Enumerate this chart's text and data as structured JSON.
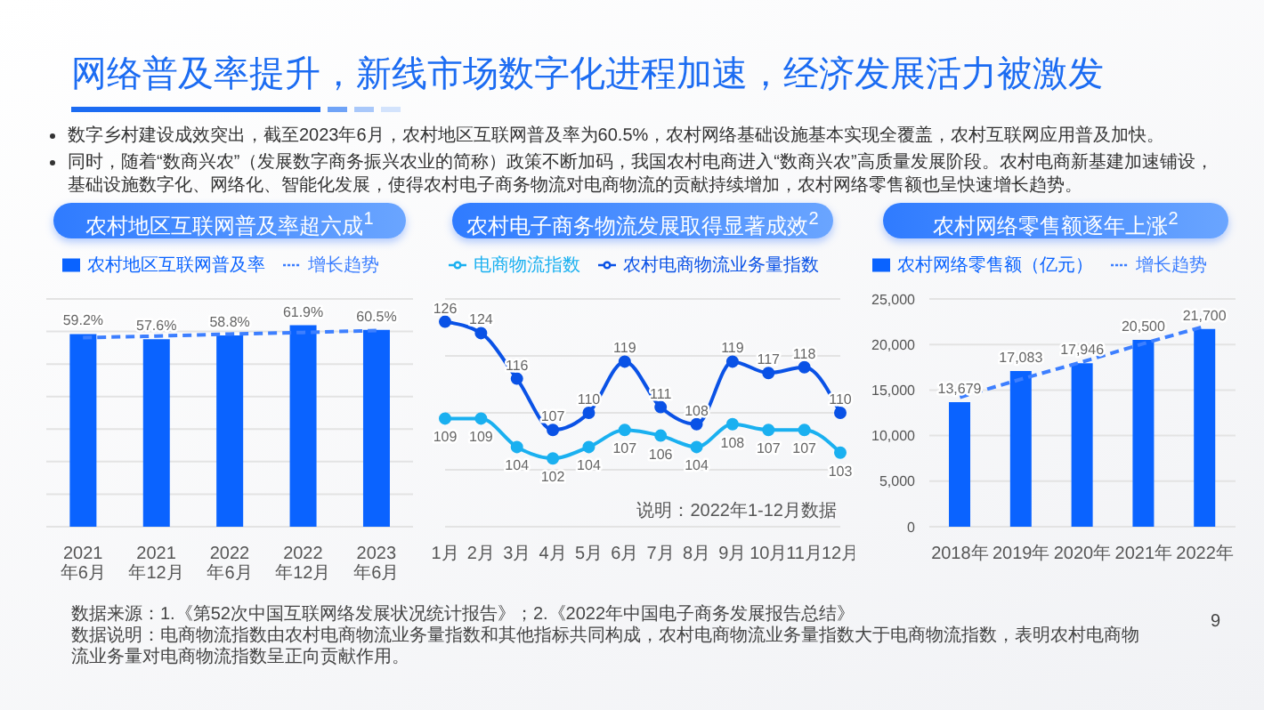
{
  "chart_data": [
    {
      "type": "other",
      "title": "网络普及率提升，新线市场数字化进程加速，经济发展活力被激发",
      "annotations": [
        "数字乡村建设成效突出，截至2023年6月，农村地区互联网普及率为60.5%，农村网络基础设施基本实现全覆盖，农村互联网应用普及加快。",
        "同时，随着“数商兴农”（发展数字商务振兴农业的简称）政策不断加码，我国农村电商进入“数商兴农”高质量发展阶段。农村电商新基建加速铺设，基础设施数字化、网络化、智能化发展，使得农村电子商务物流对电商物流的贡献持续增加，农村网络零售额也呈快速增长趋势。"
      ]
    },
    {
      "type": "bar",
      "title": "农村地区互联网普及率超六成$^{1}$",
      "categories": [
        "2021年6月",
        "2021年12月",
        "2022年6月",
        "2022年12月",
        "2023年6月"
      ],
      "ylim": [
        0,
        70
      ],
      "yticks": [
        0,
        10,
        20,
        30,
        40,
        50,
        60,
        70
      ],
      "tick_labels": "x",
      "grid": "y",
      "legend": "top",
      "series": [
        {
          "type": "bar",
          "name": "农村地区互联网普及率",
          "color": "#0a63ff",
          "values": [
            59.2,
            57.6,
            58.8,
            61.9,
            60.5
          ],
          "value_labels": [
            "59.2%",
            "57.6%",
            "58.8%",
            "61.9%",
            "60.5%"
          ]
        },
        {
          "type": "line",
          "name": "增长趋势",
          "color": "#3d7fff",
          "values": [
            58.1,
            58.6,
            59.2,
            59.7,
            60.3
          ],
          "line_style": "dashed",
          "marker": "none"
        }
      ]
    },
    {
      "type": "line",
      "title": "农村电子商务物流发展取得显著成效$^{2}$",
      "categories": [
        "1月",
        "2月",
        "3月",
        "4月",
        "5月",
        "6月",
        "7月",
        "8月",
        "9月",
        "10月",
        "11月",
        "12月"
      ],
      "ylim": [
        90,
        130
      ],
      "yticks": [
        90,
        100,
        110,
        120,
        130
      ],
      "tick_labels": "x",
      "grid": "y",
      "legend": "top",
      "marker": "circle",
      "data_labels": true,
      "annotations": [
        "说明：2022年1-12月数据"
      ],
      "series": [
        {
          "name": "电商物流指数",
          "color": "#1ab0f0",
          "values": [
            109,
            109,
            104,
            102,
            104,
            107,
            106,
            104,
            108,
            107,
            107,
            103
          ]
        },
        {
          "name": "农村电商物流业务量指数",
          "color": "#0a52e6",
          "values": [
            126,
            124,
            116,
            107,
            110,
            119,
            111,
            108,
            119,
            117,
            118,
            110
          ]
        }
      ]
    },
    {
      "type": "bar",
      "title": "农村网络零售额逐年上涨$^{2}$",
      "categories": [
        "2018年",
        "2019年",
        "2020年",
        "2021年",
        "2022年"
      ],
      "ylim": [
        0,
        25000
      ],
      "yticks": [
        {
          "value": 0,
          "label": "0"
        },
        {
          "value": 5000,
          "label": "5,000"
        },
        {
          "value": 10000,
          "label": "10,000"
        },
        {
          "value": 15000,
          "label": "15,000"
        },
        {
          "value": 20000,
          "label": "20,000"
        },
        {
          "value": 25000,
          "label": "25,000"
        }
      ],
      "grid": "y",
      "legend": "top",
      "series": [
        {
          "type": "bar",
          "name": "农村网络零售额（亿元）",
          "color": "#0a63ff",
          "values": [
            13679,
            17083,
            17946,
            20500,
            21700
          ],
          "value_labels": [
            "13,679",
            "17,083",
            "17,946",
            "20,500",
            "21,700"
          ]
        },
        {
          "type": "line",
          "name": "增长趋势",
          "color": "#3d7fff",
          "values": [
            14200,
            16200,
            18100,
            20100,
            22000
          ],
          "line_style": "dashed",
          "marker": "none"
        }
      ]
    },
    {
      "type": "other",
      "annotations": [
        "数据来源：1.《第52次中国互联网络发展状况统计报告》；2.《2022年中国电子商务发展报告总结》",
        "数据说明：电商物流指数由农村电商物流业务量指数和其他指标共同构成，农村电商物流业务量指数大于电商物流指数，表明农村电商物流业务量对电商物流指数呈正向贡献作用。",
        "9"
      ]
    }
  ]
}
